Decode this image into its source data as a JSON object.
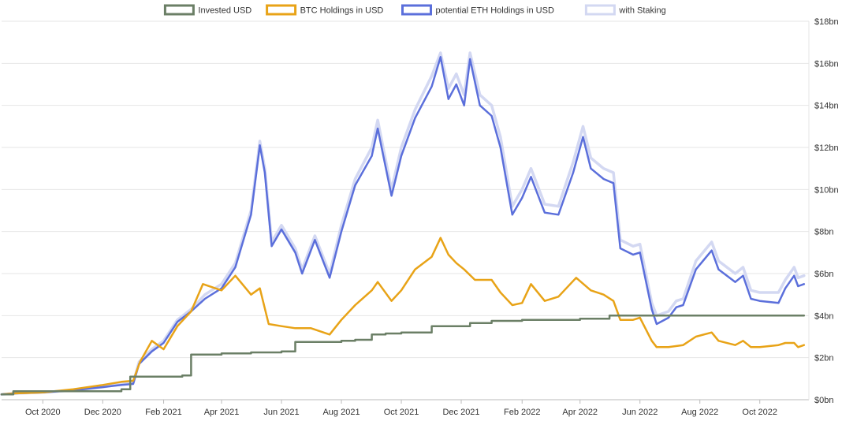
{
  "chart_data": {
    "type": "line",
    "title": "",
    "xlabel": "",
    "ylabel": "",
    "ylim": [
      0,
      18
    ],
    "y_tick_values": [
      0,
      2,
      4,
      6,
      8,
      10,
      12,
      14,
      16,
      18
    ],
    "y_tick_labels": [
      "$0bn",
      "$2bn",
      "$4bn",
      "$6bn",
      "$8bn",
      "$10bn",
      "$12bn",
      "$14bn",
      "$16bn",
      "$18bn"
    ],
    "y_axis_side": "right",
    "xlim": [
      "2020-08-20",
      "2022-11-20"
    ],
    "x_ticks": [
      {
        "date": "2020-10-01",
        "label": "Oct 2020"
      },
      {
        "date": "2020-12-01",
        "label": "Dec 2020"
      },
      {
        "date": "2021-02-01",
        "label": "Feb 2021"
      },
      {
        "date": "2021-04-01",
        "label": "Apr 2021"
      },
      {
        "date": "2021-06-01",
        "label": "Jun 2021"
      },
      {
        "date": "2021-08-01",
        "label": "Aug 2021"
      },
      {
        "date": "2021-10-01",
        "label": "Oct 2021"
      },
      {
        "date": "2021-12-01",
        "label": "Dec 2021"
      },
      {
        "date": "2022-02-01",
        "label": "Feb 2022"
      },
      {
        "date": "2022-04-01",
        "label": "Apr 2022"
      },
      {
        "date": "2022-06-01",
        "label": "Jun 2022"
      },
      {
        "date": "2022-08-01",
        "label": "Aug 2022"
      },
      {
        "date": "2022-10-01",
        "label": "Oct 2022"
      }
    ],
    "grid": {
      "horizontal": true,
      "vertical": false
    },
    "legend_position": "top-center",
    "series": [
      {
        "name": "with Staking",
        "color": "#d3d8f2",
        "step": false,
        "points": [
          [
            "2020-08-20",
            0.25
          ],
          [
            "2020-09-01",
            0.3
          ],
          [
            "2020-10-01",
            0.35
          ],
          [
            "2020-11-01",
            0.45
          ],
          [
            "2020-12-01",
            0.6
          ],
          [
            "2020-12-20",
            0.75
          ],
          [
            "2021-01-01",
            0.8
          ],
          [
            "2021-01-07",
            1.8
          ],
          [
            "2021-01-20",
            2.4
          ],
          [
            "2021-02-01",
            2.8
          ],
          [
            "2021-02-15",
            3.8
          ],
          [
            "2021-03-01",
            4.3
          ],
          [
            "2021-03-15",
            5.0
          ],
          [
            "2021-04-01",
            5.5
          ],
          [
            "2021-04-15",
            6.5
          ],
          [
            "2021-05-01",
            9.0
          ],
          [
            "2021-05-10",
            12.3
          ],
          [
            "2021-05-15",
            11.0
          ],
          [
            "2021-05-22",
            7.5
          ],
          [
            "2021-06-01",
            8.3
          ],
          [
            "2021-06-15",
            7.2
          ],
          [
            "2021-06-22",
            6.2
          ],
          [
            "2021-07-05",
            7.8
          ],
          [
            "2021-07-20",
            6.0
          ],
          [
            "2021-08-01",
            8.3
          ],
          [
            "2021-08-15",
            10.5
          ],
          [
            "2021-09-01",
            12.0
          ],
          [
            "2021-09-07",
            13.3
          ],
          [
            "2021-09-21",
            10.0
          ],
          [
            "2021-10-01",
            12.0
          ],
          [
            "2021-10-15",
            13.8
          ],
          [
            "2021-11-01",
            15.4
          ],
          [
            "2021-11-10",
            16.5
          ],
          [
            "2021-11-18",
            14.8
          ],
          [
            "2021-11-26",
            15.5
          ],
          [
            "2021-12-04",
            14.5
          ],
          [
            "2021-12-10",
            16.5
          ],
          [
            "2021-12-20",
            14.5
          ],
          [
            "2022-01-01",
            14.0
          ],
          [
            "2022-01-10",
            12.5
          ],
          [
            "2022-01-22",
            9.2
          ],
          [
            "2022-02-01",
            10.0
          ],
          [
            "2022-02-10",
            11.0
          ],
          [
            "2022-02-24",
            9.3
          ],
          [
            "2022-03-10",
            9.2
          ],
          [
            "2022-03-25",
            11.3
          ],
          [
            "2022-04-04",
            13.0
          ],
          [
            "2022-04-12",
            11.5
          ],
          [
            "2022-04-25",
            11.0
          ],
          [
            "2022-05-05",
            10.8
          ],
          [
            "2022-05-12",
            7.6
          ],
          [
            "2022-05-25",
            7.3
          ],
          [
            "2022-06-01",
            7.4
          ],
          [
            "2022-06-13",
            4.6
          ],
          [
            "2022-06-18",
            4.0
          ],
          [
            "2022-06-30",
            4.2
          ],
          [
            "2022-07-08",
            4.7
          ],
          [
            "2022-07-15",
            4.8
          ],
          [
            "2022-07-28",
            6.6
          ],
          [
            "2022-08-13",
            7.5
          ],
          [
            "2022-08-20",
            6.6
          ],
          [
            "2022-09-06",
            6.0
          ],
          [
            "2022-09-14",
            6.3
          ],
          [
            "2022-09-22",
            5.2
          ],
          [
            "2022-10-01",
            5.1
          ],
          [
            "2022-10-20",
            5.1
          ],
          [
            "2022-10-27",
            5.7
          ],
          [
            "2022-11-05",
            6.3
          ],
          [
            "2022-11-09",
            5.8
          ],
          [
            "2022-11-15",
            5.9
          ]
        ]
      },
      {
        "name": "potential ETH Holdings in USD",
        "color": "#5b6fdb",
        "step": false,
        "points": [
          [
            "2020-08-20",
            0.25
          ],
          [
            "2020-09-01",
            0.3
          ],
          [
            "2020-10-01",
            0.35
          ],
          [
            "2020-11-01",
            0.45
          ],
          [
            "2020-12-01",
            0.6
          ],
          [
            "2020-12-20",
            0.7
          ],
          [
            "2021-01-01",
            0.75
          ],
          [
            "2021-01-07",
            1.7
          ],
          [
            "2021-01-20",
            2.3
          ],
          [
            "2021-02-01",
            2.7
          ],
          [
            "2021-02-15",
            3.7
          ],
          [
            "2021-03-01",
            4.2
          ],
          [
            "2021-03-15",
            4.8
          ],
          [
            "2021-04-01",
            5.3
          ],
          [
            "2021-04-15",
            6.3
          ],
          [
            "2021-05-01",
            8.8
          ],
          [
            "2021-05-10",
            12.1
          ],
          [
            "2021-05-15",
            10.8
          ],
          [
            "2021-05-22",
            7.3
          ],
          [
            "2021-06-01",
            8.1
          ],
          [
            "2021-06-15",
            7.0
          ],
          [
            "2021-06-22",
            6.0
          ],
          [
            "2021-07-05",
            7.6
          ],
          [
            "2021-07-20",
            5.8
          ],
          [
            "2021-08-01",
            8.0
          ],
          [
            "2021-08-15",
            10.2
          ],
          [
            "2021-09-01",
            11.6
          ],
          [
            "2021-09-07",
            12.9
          ],
          [
            "2021-09-21",
            9.7
          ],
          [
            "2021-10-01",
            11.6
          ],
          [
            "2021-10-15",
            13.4
          ],
          [
            "2021-11-01",
            14.9
          ],
          [
            "2021-11-10",
            16.3
          ],
          [
            "2021-11-18",
            14.3
          ],
          [
            "2021-11-26",
            15.0
          ],
          [
            "2021-12-04",
            14.0
          ],
          [
            "2021-12-10",
            16.2
          ],
          [
            "2021-12-20",
            14.0
          ],
          [
            "2022-01-01",
            13.5
          ],
          [
            "2022-01-10",
            12.0
          ],
          [
            "2022-01-22",
            8.8
          ],
          [
            "2022-02-01",
            9.6
          ],
          [
            "2022-02-10",
            10.6
          ],
          [
            "2022-02-24",
            8.9
          ],
          [
            "2022-03-10",
            8.8
          ],
          [
            "2022-03-25",
            10.8
          ],
          [
            "2022-04-04",
            12.5
          ],
          [
            "2022-04-12",
            11.0
          ],
          [
            "2022-04-25",
            10.5
          ],
          [
            "2022-05-05",
            10.3
          ],
          [
            "2022-05-12",
            7.2
          ],
          [
            "2022-05-25",
            6.9
          ],
          [
            "2022-06-01",
            7.0
          ],
          [
            "2022-06-13",
            4.3
          ],
          [
            "2022-06-18",
            3.6
          ],
          [
            "2022-06-30",
            3.9
          ],
          [
            "2022-07-08",
            4.4
          ],
          [
            "2022-07-15",
            4.5
          ],
          [
            "2022-07-28",
            6.2
          ],
          [
            "2022-08-13",
            7.1
          ],
          [
            "2022-08-20",
            6.2
          ],
          [
            "2022-09-06",
            5.6
          ],
          [
            "2022-09-14",
            5.9
          ],
          [
            "2022-09-22",
            4.8
          ],
          [
            "2022-10-01",
            4.7
          ],
          [
            "2022-10-20",
            4.6
          ],
          [
            "2022-10-27",
            5.3
          ],
          [
            "2022-11-05",
            5.9
          ],
          [
            "2022-11-09",
            5.4
          ],
          [
            "2022-11-15",
            5.5
          ]
        ]
      },
      {
        "name": "BTC Holdings in USD",
        "color": "#e8a317",
        "step": false,
        "points": [
          [
            "2020-08-20",
            0.25
          ],
          [
            "2020-09-01",
            0.3
          ],
          [
            "2020-10-01",
            0.35
          ],
          [
            "2020-11-01",
            0.5
          ],
          [
            "2020-12-01",
            0.7
          ],
          [
            "2020-12-20",
            0.85
          ],
          [
            "2021-01-01",
            0.9
          ],
          [
            "2021-01-08",
            1.8
          ],
          [
            "2021-01-20",
            2.8
          ],
          [
            "2021-02-01",
            2.4
          ],
          [
            "2021-02-15",
            3.5
          ],
          [
            "2021-03-01",
            4.2
          ],
          [
            "2021-03-13",
            5.5
          ],
          [
            "2021-04-01",
            5.2
          ],
          [
            "2021-04-15",
            5.9
          ],
          [
            "2021-05-01",
            5.0
          ],
          [
            "2021-05-10",
            5.3
          ],
          [
            "2021-05-19",
            3.6
          ],
          [
            "2021-06-01",
            3.5
          ],
          [
            "2021-06-15",
            3.4
          ],
          [
            "2021-07-01",
            3.4
          ],
          [
            "2021-07-20",
            3.1
          ],
          [
            "2021-08-01",
            3.8
          ],
          [
            "2021-08-15",
            4.5
          ],
          [
            "2021-09-01",
            5.2
          ],
          [
            "2021-09-07",
            5.6
          ],
          [
            "2021-09-21",
            4.7
          ],
          [
            "2021-10-01",
            5.2
          ],
          [
            "2021-10-15",
            6.2
          ],
          [
            "2021-11-01",
            6.8
          ],
          [
            "2021-11-10",
            7.7
          ],
          [
            "2021-11-18",
            6.9
          ],
          [
            "2021-11-26",
            6.5
          ],
          [
            "2021-12-04",
            6.2
          ],
          [
            "2021-12-15",
            5.7
          ],
          [
            "2022-01-01",
            5.7
          ],
          [
            "2022-01-10",
            5.1
          ],
          [
            "2022-01-22",
            4.5
          ],
          [
            "2022-02-01",
            4.6
          ],
          [
            "2022-02-10",
            5.5
          ],
          [
            "2022-02-24",
            4.7
          ],
          [
            "2022-03-10",
            4.9
          ],
          [
            "2022-03-28",
            5.8
          ],
          [
            "2022-04-12",
            5.2
          ],
          [
            "2022-04-25",
            5.0
          ],
          [
            "2022-05-05",
            4.7
          ],
          [
            "2022-05-12",
            3.8
          ],
          [
            "2022-05-25",
            3.8
          ],
          [
            "2022-06-01",
            3.9
          ],
          [
            "2022-06-13",
            2.8
          ],
          [
            "2022-06-18",
            2.5
          ],
          [
            "2022-06-30",
            2.5
          ],
          [
            "2022-07-15",
            2.6
          ],
          [
            "2022-07-28",
            3.0
          ],
          [
            "2022-08-13",
            3.2
          ],
          [
            "2022-08-20",
            2.8
          ],
          [
            "2022-09-06",
            2.6
          ],
          [
            "2022-09-14",
            2.8
          ],
          [
            "2022-09-22",
            2.5
          ],
          [
            "2022-10-01",
            2.5
          ],
          [
            "2022-10-20",
            2.6
          ],
          [
            "2022-10-27",
            2.7
          ],
          [
            "2022-11-05",
            2.7
          ],
          [
            "2022-11-09",
            2.5
          ],
          [
            "2022-11-15",
            2.6
          ]
        ]
      },
      {
        "name": "Invested USD",
        "color": "#6b7f66",
        "step": true,
        "points": [
          [
            "2020-08-20",
            0.25
          ],
          [
            "2020-09-01",
            0.4
          ],
          [
            "2020-12-20",
            0.5
          ],
          [
            "2020-12-29",
            1.1
          ],
          [
            "2021-02-20",
            1.15
          ],
          [
            "2021-03-01",
            2.15
          ],
          [
            "2021-04-01",
            2.2
          ],
          [
            "2021-05-01",
            2.25
          ],
          [
            "2021-06-01",
            2.3
          ],
          [
            "2021-06-15",
            2.75
          ],
          [
            "2021-08-01",
            2.8
          ],
          [
            "2021-08-15",
            2.85
          ],
          [
            "2021-09-01",
            3.1
          ],
          [
            "2021-09-15",
            3.15
          ],
          [
            "2021-10-01",
            3.2
          ],
          [
            "2021-11-01",
            3.5
          ],
          [
            "2021-12-10",
            3.65
          ],
          [
            "2022-01-01",
            3.75
          ],
          [
            "2022-02-01",
            3.8
          ],
          [
            "2022-04-01",
            3.85
          ],
          [
            "2022-05-01",
            4.0
          ],
          [
            "2022-11-15",
            4.0
          ]
        ]
      }
    ],
    "legend": [
      {
        "name": "Invested USD",
        "color": "#6b7f66"
      },
      {
        "name": "BTC Holdings in USD",
        "color": "#e8a317"
      },
      {
        "name": "potential ETH Holdings in USD",
        "color": "#5b6fdb"
      },
      {
        "name": "with Staking",
        "color": "#d3d8f2"
      }
    ]
  }
}
